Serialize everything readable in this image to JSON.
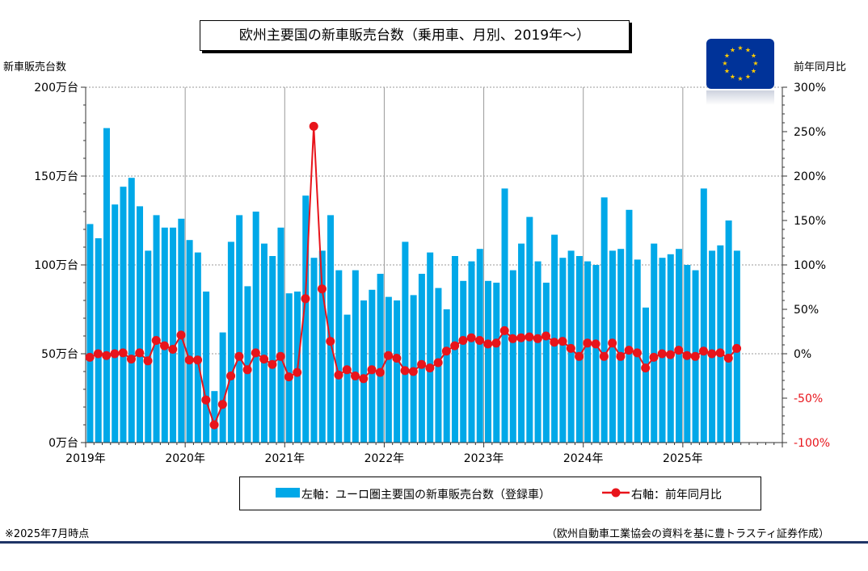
{
  "header": {
    "title": "欧州主要国の新車販売台数（乗用車、月別、2019年～）",
    "left_axis_title": "新車販売台数",
    "right_axis_title": "前年同月比"
  },
  "legend": {
    "bar_label": "左軸：ユーロ圏主要国の新車販売台数（登録車）",
    "line_label": "右軸：前年同月比"
  },
  "footer": {
    "note_left": "※2025年7月時点",
    "note_right": "（欧州自動車工業協会の資料を基に豊トラスティ証券作成）"
  },
  "flag": {
    "icon": "eu-flag-icon",
    "colors": {
      "field": "#003399",
      "stars": "#ffcc00"
    }
  },
  "colors": {
    "bar": "#00a8e8",
    "line": "#e8141b",
    "grid": "#9a9a9a",
    "negative_label": "#e8141b",
    "rule": "#1f3466"
  },
  "chart_data": {
    "type": "bar",
    "x_labels": [
      "2019年",
      "2020年",
      "2021年",
      "2022年",
      "2023年",
      "2024年",
      "2025年"
    ],
    "y_left": {
      "ylim": [
        0,
        200
      ],
      "ticks": [
        0,
        50,
        100,
        150,
        200
      ],
      "tick_labels": [
        "0万台",
        "50万台",
        "100万台",
        "150万台",
        "200万台"
      ]
    },
    "y_right": {
      "ylim": [
        -100,
        300
      ],
      "ticks": [
        -100,
        -50,
        0,
        50,
        100,
        150,
        200,
        250,
        300
      ],
      "tick_labels": [
        "-100%",
        "-50%",
        "0%",
        "50%",
        "100%",
        "150%",
        "200%",
        "250%",
        "300%"
      ]
    },
    "grid": true,
    "legend_position": "bottom",
    "series": [
      {
        "name": "左軸：ユーロ圏主要国の新車販売台数（登録車）",
        "type": "bar",
        "axis": "left",
        "values": [
          123,
          115,
          177,
          134,
          144,
          149,
          133,
          108,
          128,
          121,
          121,
          126,
          114,
          107,
          85,
          29,
          62,
          113,
          128,
          88,
          130,
          112,
          105,
          121,
          84,
          85,
          139,
          104,
          108,
          128,
          97,
          72,
          97,
          80,
          86,
          95,
          82,
          80,
          113,
          83,
          95,
          107,
          87,
          75,
          105,
          91,
          102,
          109,
          91,
          90,
          143,
          97,
          112,
          127,
          102,
          90,
          117,
          104,
          108,
          105,
          102,
          100,
          138,
          108,
          109,
          131,
          103,
          76,
          112,
          104,
          106,
          109,
          100,
          97,
          143,
          108,
          111,
          125,
          108
        ]
      },
      {
        "name": "右軸：前年同月比",
        "type": "line",
        "axis": "right",
        "values": [
          -4,
          0,
          -2,
          0,
          1,
          -6,
          1,
          -8,
          15,
          9,
          5,
          21,
          -7,
          -7,
          -52,
          -80,
          -57,
          -25,
          -3,
          -18,
          1,
          -6,
          -12,
          -3,
          -26,
          -21,
          62,
          256,
          73,
          14,
          -24,
          -18,
          -25,
          -28,
          -18,
          -21,
          -2,
          -5,
          -19,
          -20,
          -12,
          -16,
          -10,
          3,
          9,
          15,
          18,
          15,
          11,
          12,
          26,
          17,
          18,
          19,
          17,
          20,
          13,
          14,
          6,
          -3,
          12,
          11,
          -3,
          12,
          -3,
          4,
          1,
          -16,
          -4,
          0,
          -1,
          4,
          -2,
          -3,
          3,
          0,
          1,
          -5,
          6
        ]
      }
    ]
  }
}
